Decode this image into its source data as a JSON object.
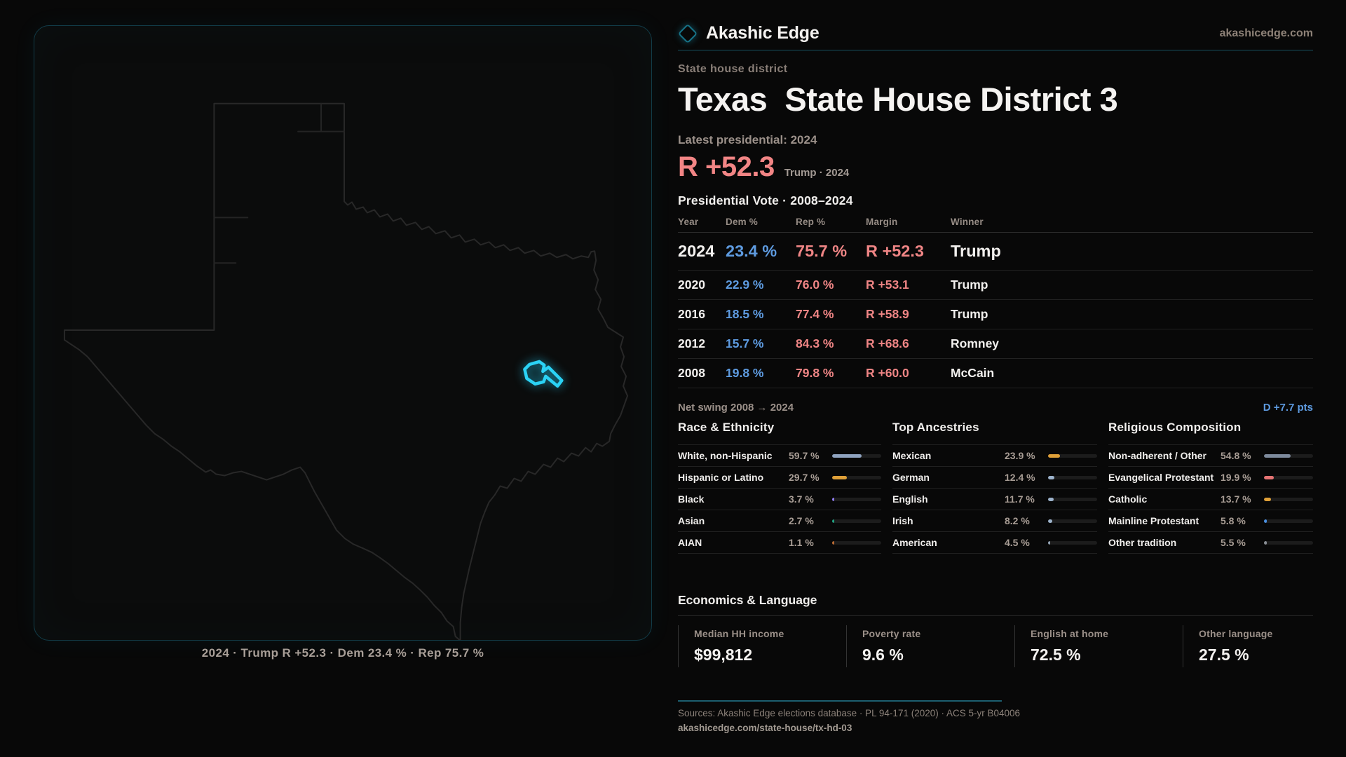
{
  "brand": {
    "name": "Akashic Edge",
    "domain": "akashicedge.com"
  },
  "page": {
    "kicker": "State house district",
    "title": "Texas  State House District 3",
    "latest_label": "Latest presidential: 2024",
    "headline_margin": "R +52.3",
    "headline_sub": "Trump · 2024"
  },
  "map": {
    "caption": "2024 · Trump R +52.3 · Dem 23.4 % · Rep 75.7 %",
    "district_color": "#2bd2f5",
    "outline_color": "#282828"
  },
  "presidential": {
    "title": "Presidential Vote · 2008–2024",
    "columns": [
      "Year",
      "Dem %",
      "Rep %",
      "Margin",
      "Winner"
    ],
    "rows": [
      {
        "year": "2024",
        "dem": "23.4 %",
        "rep": "75.7 %",
        "margin": "R +52.3",
        "winner": "Trump",
        "highlight": true
      },
      {
        "year": "2020",
        "dem": "22.9 %",
        "rep": "76.0 %",
        "margin": "R +53.1",
        "winner": "Trump",
        "highlight": false
      },
      {
        "year": "2016",
        "dem": "18.5 %",
        "rep": "77.4 %",
        "margin": "R +58.9",
        "winner": "Trump",
        "highlight": false
      },
      {
        "year": "2012",
        "dem": "15.7 %",
        "rep": "84.3 %",
        "margin": "R +68.6",
        "winner": "Romney",
        "highlight": false
      },
      {
        "year": "2008",
        "dem": "19.8 %",
        "rep": "79.8 %",
        "margin": "R +60.0",
        "winner": "McCain",
        "highlight": false
      }
    ],
    "net_swing_label": "Net swing 2008 → 2024",
    "net_swing_value": "D +7.7 pts"
  },
  "colors": {
    "dem_blue": "#5e9be0",
    "rep_red": "#ef8585",
    "accent_cyan": "#2bd2f5",
    "accent_teal": "#16505f"
  },
  "demographics": {
    "race": {
      "title": "Race & Ethnicity",
      "rows": [
        {
          "label": "White, non-Hispanic",
          "value": "59.7 %",
          "pct": 59.7,
          "color": "#8fa3bf"
        },
        {
          "label": "Hispanic or Latino",
          "value": "29.7 %",
          "pct": 29.7,
          "color": "#dfa038"
        },
        {
          "label": "Black",
          "value": "3.7 %",
          "pct": 3.7,
          "color": "#8f7df0"
        },
        {
          "label": "Asian",
          "value": "2.7 %",
          "pct": 2.7,
          "color": "#21a181"
        },
        {
          "label": "AIAN",
          "value": "1.1 %",
          "pct": 1.1,
          "color": "#b96a33"
        }
      ]
    },
    "ancestries": {
      "title": "Top Ancestries",
      "rows": [
        {
          "label": "Mexican",
          "value": "23.9 %",
          "pct": 23.9,
          "color": "#dfa038"
        },
        {
          "label": "German",
          "value": "12.4 %",
          "pct": 12.4,
          "color": "#9db3cc"
        },
        {
          "label": "English",
          "value": "11.7 %",
          "pct": 11.7,
          "color": "#9db3cc"
        },
        {
          "label": "Irish",
          "value": "8.2 %",
          "pct": 8.2,
          "color": "#9db3cc"
        },
        {
          "label": "American",
          "value": "4.5 %",
          "pct": 4.5,
          "color": "#93a3b3"
        }
      ]
    },
    "religion": {
      "title": "Religious Composition",
      "rows": [
        {
          "label": "Non-adherent / Other",
          "value": "54.8 %",
          "pct": 54.8,
          "color": "#7d8a9c"
        },
        {
          "label": "Evangelical Protestant",
          "value": "19.9 %",
          "pct": 19.9,
          "color": "#e57373"
        },
        {
          "label": "Catholic",
          "value": "13.7 %",
          "pct": 13.7,
          "color": "#dfa038"
        },
        {
          "label": "Mainline Protestant",
          "value": "5.8 %",
          "pct": 5.8,
          "color": "#4a90e2"
        },
        {
          "label": "Other tradition",
          "value": "5.5 %",
          "pct": 5.5,
          "color": "#8a8f96"
        }
      ]
    }
  },
  "economics": {
    "title": "Economics & Language",
    "stats": [
      {
        "label": "Median HH income",
        "value": "$99,812"
      },
      {
        "label": "Poverty rate",
        "value": "9.6 %"
      },
      {
        "label": "English at home",
        "value": "72.5 %"
      },
      {
        "label": "Other language",
        "value": "27.5 %"
      }
    ]
  },
  "footer": {
    "sources": "Sources: Akashic Edge elections database · PL 94-171 (2020) · ACS 5-yr B04006",
    "link": "akashicedge.com/state-house/tx-hd-03"
  }
}
